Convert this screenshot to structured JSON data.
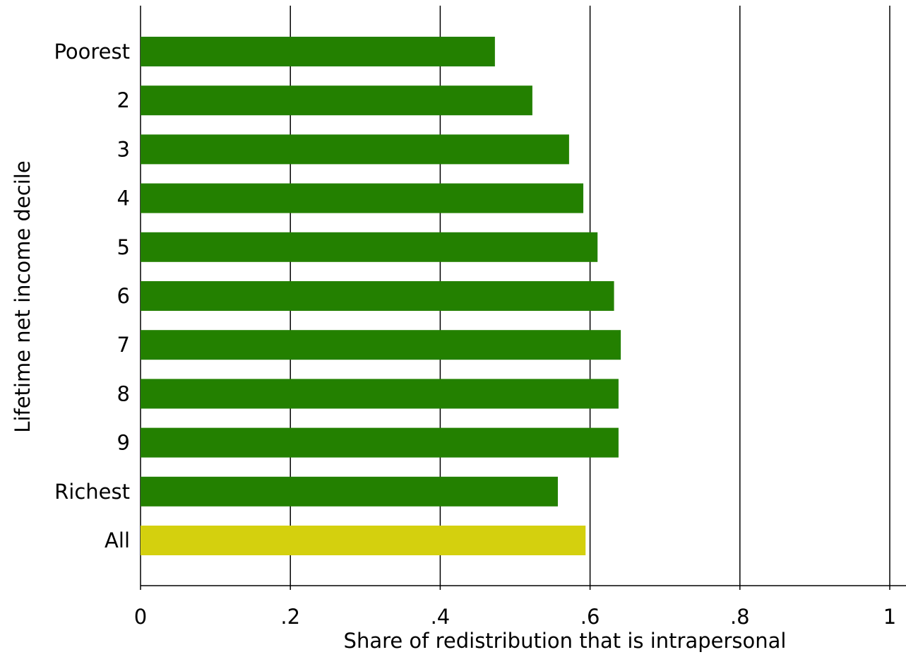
{
  "chart_data": {
    "type": "bar",
    "orientation": "horizontal",
    "title": "",
    "xlabel": "Share of redistribution that is intrapersonal",
    "ylabel": "Lifetime net income decile",
    "categories": [
      "Poorest",
      "2",
      "3",
      "4",
      "5",
      "6",
      "7",
      "8",
      "9",
      "Richest",
      "All"
    ],
    "values": [
      0.473,
      0.523,
      0.572,
      0.591,
      0.61,
      0.632,
      0.641,
      0.638,
      0.638,
      0.557,
      0.594
    ],
    "bar_colors": [
      "#238000",
      "#238000",
      "#238000",
      "#238000",
      "#238000",
      "#238000",
      "#238000",
      "#238000",
      "#238000",
      "#238000",
      "#d4d00e"
    ],
    "xlim": [
      0,
      1
    ],
    "xticks": [
      0,
      0.2,
      0.4,
      0.6,
      0.8,
      1
    ],
    "xtick_labels": [
      "0",
      ".2",
      ".4",
      ".6",
      ".8",
      "1"
    ],
    "grid": true,
    "legend": "none"
  }
}
